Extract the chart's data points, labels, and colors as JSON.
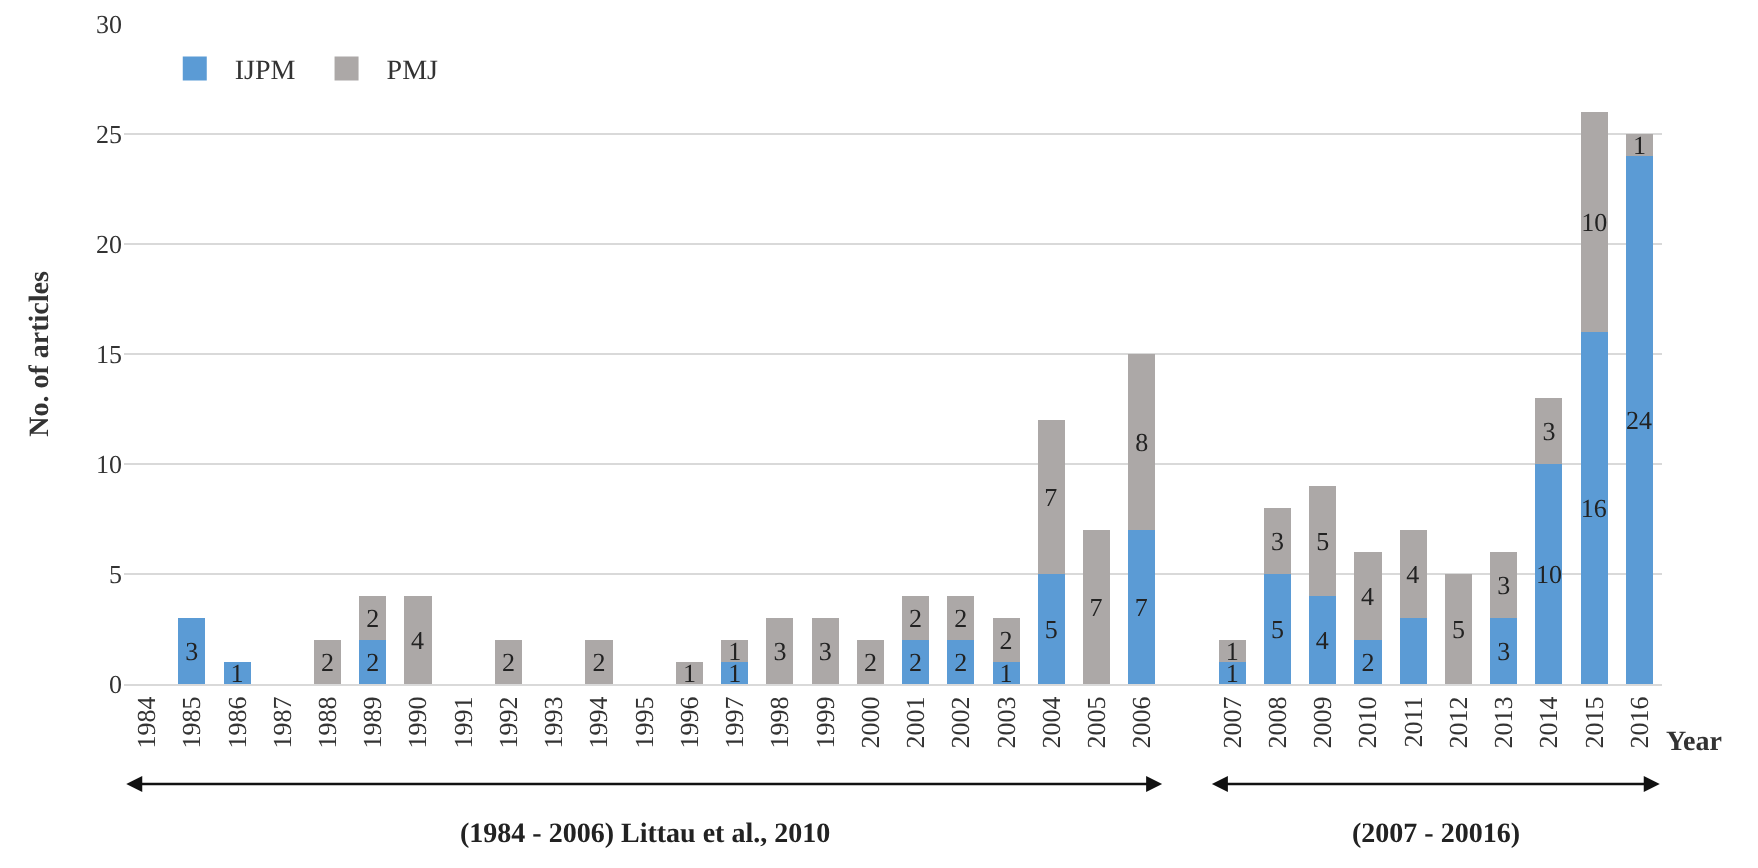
{
  "chart_data": {
    "type": "bar",
    "stacked": true,
    "xlabel": "Year",
    "ylabel": "No. of articles",
    "categories": [
      "1984",
      "1985",
      "1986",
      "1987",
      "1988",
      "1989",
      "1990",
      "1991",
      "1992",
      "1993",
      "1994",
      "1995",
      "1996",
      "1997",
      "1998",
      "1999",
      "2000",
      "2001",
      "2002",
      "2003",
      "2004",
      "2005",
      "2006",
      null,
      "2007",
      "2008",
      "2009",
      "2010",
      "2011",
      "2012",
      "2013",
      "2014",
      "2015",
      "2016"
    ],
    "series": [
      {
        "name": "IJPM",
        "color": "#5b9bd5",
        "values": [
          null,
          3,
          1,
          null,
          null,
          2,
          null,
          null,
          null,
          null,
          null,
          null,
          null,
          1,
          null,
          null,
          null,
          2,
          2,
          1,
          5,
          null,
          7,
          null,
          1,
          5,
          4,
          2,
          3,
          null,
          3,
          10,
          16,
          24
        ],
        "value_labels": [
          null,
          "3",
          "1",
          null,
          null,
          "2",
          null,
          null,
          null,
          null,
          null,
          null,
          null,
          "1",
          null,
          null,
          null,
          "2",
          "2",
          "1",
          "5",
          null,
          "7",
          null,
          "1",
          "5",
          "4",
          "2",
          null,
          null,
          "3",
          "10",
          "16",
          "24"
        ]
      },
      {
        "name": "PMJ",
        "color": "#aca8a7",
        "values": [
          null,
          null,
          null,
          null,
          2,
          2,
          4,
          null,
          2,
          null,
          2,
          null,
          1,
          1,
          3,
          3,
          2,
          2,
          2,
          2,
          7,
          7,
          8,
          null,
          1,
          3,
          5,
          4,
          4,
          5,
          3,
          3,
          10,
          1
        ],
        "value_labels": [
          null,
          null,
          null,
          null,
          "2",
          "2",
          "4",
          null,
          "2",
          null,
          "2",
          null,
          "1",
          "1",
          "3",
          "3",
          "2",
          "2",
          "2",
          "2",
          "7",
          "7",
          "8",
          null,
          "1",
          "3",
          "5",
          "4",
          "4",
          "5",
          "3",
          "3",
          "10",
          "1"
        ]
      }
    ],
    "ylim": [
      0,
      30
    ],
    "yticks": [
      0,
      5,
      10,
      15,
      20,
      25,
      30
    ],
    "grid": "y",
    "legend": "top left",
    "annotations": [
      "(1984 - 2006) Littau et al., 2010",
      "(2007 - 20016)"
    ]
  }
}
